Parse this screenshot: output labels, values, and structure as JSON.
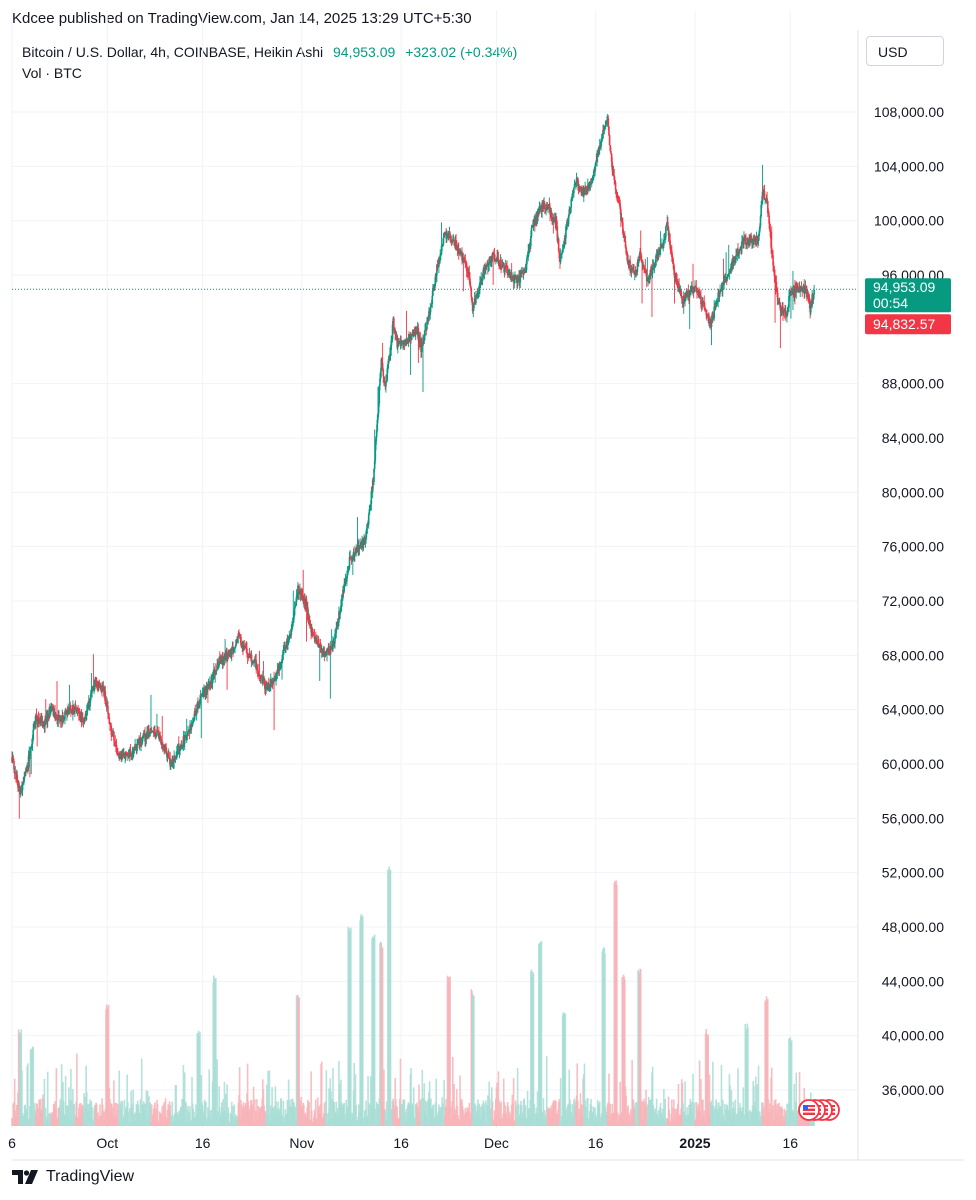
{
  "publish_line": "Kdcee published on TradingView.com, Jan 14, 2025 13:29 UTC+5:30",
  "symbol_line": "Bitcoin / U.S. Dollar, 4h, COINBASE, Heikin Ashi",
  "last_price": "94,953.09",
  "change": "+323.02 (+0.34%)",
  "volume_label": "Vol · BTC",
  "currency_button": "USD",
  "price_tag": {
    "price": "94,953.09",
    "countdown": "00:54"
  },
  "prev_tag": "94,832.57",
  "brand": "TradingView",
  "colors": {
    "up": "#089981",
    "down": "#f23645",
    "vol_up": "#a8ddd5",
    "vol_down": "#f7b4b9",
    "grid": "#f0f3fa"
  },
  "chart_data": {
    "type": "candlestick",
    "title": "Bitcoin / U.S. Dollar, 4h, COINBASE, Heikin Ashi",
    "ylim": [
      32000,
      110000
    ],
    "y_ticks": [
      "108,000.00",
      "104,000.00",
      "100,000.00",
      "96,000.00",
      "88,000.00",
      "84,000.00",
      "80,000.00",
      "76,000.00",
      "72,000.00",
      "68,000.00",
      "64,000.00",
      "60,000.00",
      "56,000.00",
      "52,000.00",
      "48,000.00",
      "44,000.00",
      "40,000.00",
      "36,000.00"
    ],
    "x_ticks": [
      {
        "label": "6",
        "day": 0
      },
      {
        "label": "Oct",
        "day": 24
      },
      {
        "label": "16",
        "day": 48
      },
      {
        "label": "Nov",
        "day": 73
      },
      {
        "label": "16",
        "day": 98
      },
      {
        "label": "Dec",
        "day": 122
      },
      {
        "label": "16",
        "day": 147
      },
      {
        "label": "2025",
        "day": 172,
        "bold": true
      },
      {
        "label": "16",
        "day": 196
      }
    ],
    "price_path": [
      [
        0,
        60500
      ],
      [
        2,
        57800
      ],
      [
        4,
        60000
      ],
      [
        6,
        63500
      ],
      [
        8,
        63000
      ],
      [
        10,
        64000
      ],
      [
        12,
        63200
      ],
      [
        14,
        63800
      ],
      [
        16,
        64200
      ],
      [
        18,
        63200
      ],
      [
        20,
        65000
      ],
      [
        21,
        66200
      ],
      [
        23,
        65500
      ],
      [
        25,
        62500
      ],
      [
        27,
        60500
      ],
      [
        30,
        60800
      ],
      [
        33,
        61800
      ],
      [
        35,
        62500
      ],
      [
        37,
        62200
      ],
      [
        40,
        60000
      ],
      [
        42,
        61000
      ],
      [
        45,
        62800
      ],
      [
        47,
        64500
      ],
      [
        50,
        66000
      ],
      [
        52,
        67500
      ],
      [
        55,
        68200
      ],
      [
        57,
        69300
      ],
      [
        59,
        68300
      ],
      [
        61,
        67500
      ],
      [
        63,
        66300
      ],
      [
        64,
        65500
      ],
      [
        66,
        66200
      ],
      [
        68,
        67800
      ],
      [
        70,
        69500
      ],
      [
        72,
        72800
      ],
      [
        74,
        71800
      ],
      [
        75,
        70000
      ],
      [
        77,
        68800
      ],
      [
        79,
        68200
      ],
      [
        81,
        68800
      ],
      [
        83,
        72000
      ],
      [
        85,
        75000
      ],
      [
        87,
        75700
      ],
      [
        89,
        76500
      ],
      [
        90,
        78500
      ],
      [
        91,
        81000
      ],
      [
        92,
        85500
      ],
      [
        93,
        89500
      ],
      [
        94,
        88000
      ],
      [
        95,
        89800
      ],
      [
        96,
        92500
      ],
      [
        97,
        91000
      ],
      [
        98,
        90800
      ],
      [
        100,
        91300
      ],
      [
        102,
        92000
      ],
      [
        103,
        90600
      ],
      [
        105,
        93000
      ],
      [
        107,
        96500
      ],
      [
        109,
        99000
      ],
      [
        111,
        98600
      ],
      [
        113,
        97500
      ],
      [
        115,
        96200
      ],
      [
        116,
        93500
      ],
      [
        117,
        94500
      ],
      [
        119,
        96500
      ],
      [
        121,
        97500
      ],
      [
        123,
        96800
      ],
      [
        125,
        96200
      ],
      [
        127,
        95600
      ],
      [
        129,
        96000
      ],
      [
        130,
        97500
      ],
      [
        131,
        99500
      ],
      [
        133,
        101000
      ],
      [
        135,
        101000
      ],
      [
        137,
        99800
      ],
      [
        138,
        97000
      ],
      [
        140,
        100000
      ],
      [
        142,
        103000
      ],
      [
        144,
        102000
      ],
      [
        146,
        103000
      ],
      [
        148,
        105500
      ],
      [
        150,
        107500
      ],
      [
        151,
        104200
      ],
      [
        153,
        101000
      ],
      [
        155,
        97000
      ],
      [
        157,
        95800
      ],
      [
        158,
        97500
      ],
      [
        160,
        95500
      ],
      [
        162,
        97000
      ],
      [
        164,
        98500
      ],
      [
        165,
        99800
      ],
      [
        167,
        95800
      ],
      [
        169,
        94200
      ],
      [
        171,
        94800
      ],
      [
        172,
        95200
      ],
      [
        174,
        93800
      ],
      [
        176,
        92500
      ],
      [
        178,
        94500
      ],
      [
        180,
        96000
      ],
      [
        182,
        97200
      ],
      [
        184,
        98500
      ],
      [
        186,
        98500
      ],
      [
        188,
        98800
      ],
      [
        189,
        102000
      ],
      [
        190,
        101800
      ],
      [
        191,
        98500
      ],
      [
        192,
        96000
      ],
      [
        193,
        93800
      ],
      [
        195,
        93000
      ],
      [
        196,
        94700
      ],
      [
        198,
        95000
      ],
      [
        200,
        94900
      ],
      [
        201,
        93500
      ],
      [
        202,
        94953
      ]
    ],
    "volume_peaks": [
      {
        "day": 2,
        "v": 40500
      },
      {
        "day": 5,
        "v": 39500
      },
      {
        "day": 24,
        "v": 42500
      },
      {
        "day": 47,
        "v": 40500
      },
      {
        "day": 51,
        "v": 44500
      },
      {
        "day": 72,
        "v": 43000
      },
      {
        "day": 85,
        "v": 48000
      },
      {
        "day": 88,
        "v": 49000
      },
      {
        "day": 91,
        "v": 47500
      },
      {
        "day": 95,
        "v": 52500
      },
      {
        "day": 93,
        "v": 47000
      },
      {
        "day": 110,
        "v": 44500
      },
      {
        "day": 116,
        "v": 43500
      },
      {
        "day": 131,
        "v": 45000
      },
      {
        "day": 133,
        "v": 47000
      },
      {
        "day": 139,
        "v": 42000
      },
      {
        "day": 149,
        "v": 46500
      },
      {
        "day": 152,
        "v": 51500
      },
      {
        "day": 154,
        "v": 44500
      },
      {
        "day": 158,
        "v": 45000
      },
      {
        "day": 175,
        "v": 40500
      },
      {
        "day": 185,
        "v": 41000
      },
      {
        "day": 190,
        "v": 43000
      },
      {
        "day": 196,
        "v": 40000
      }
    ],
    "last_price_value": 94953.09,
    "prev_price_value": 94832.57
  }
}
